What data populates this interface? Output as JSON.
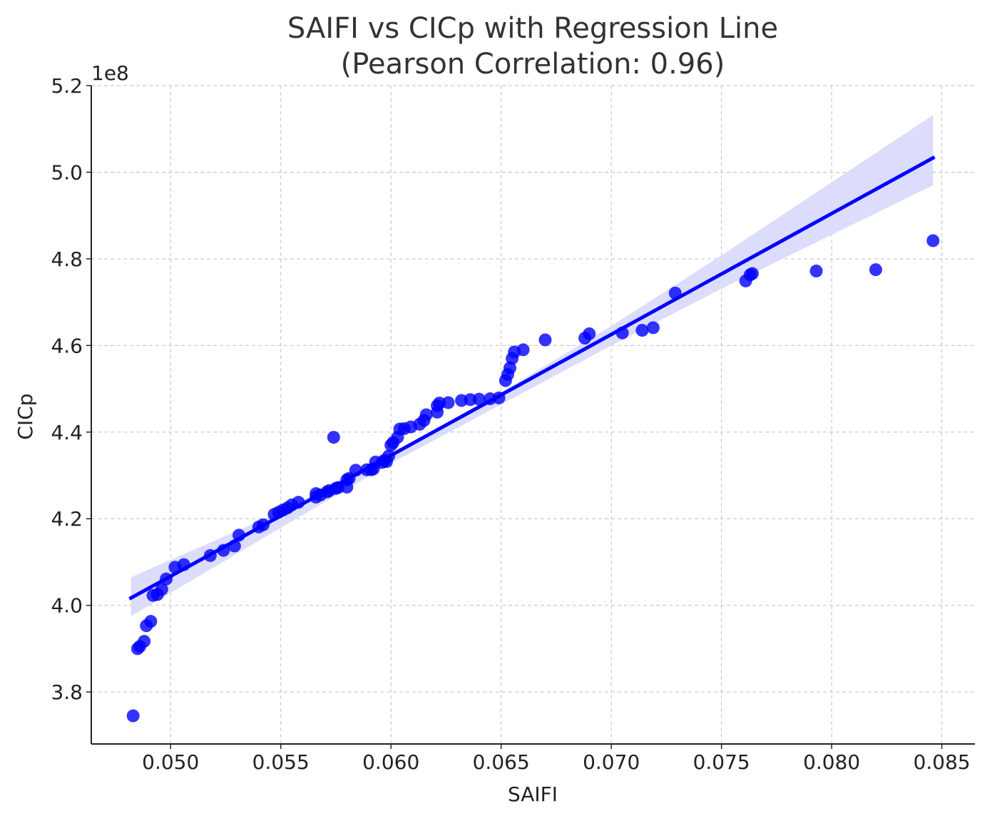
{
  "chart_data": {
    "type": "scatter",
    "title": "SAIFI vs CICp with Regression Line",
    "subtitle": "(Pearson Correlation: 0.96)",
    "xlabel": "SAIFI",
    "ylabel": "CICp",
    "y_offset_label": "1e8",
    "xlim": [
      0.0464,
      0.0865
    ],
    "ylim": [
      3.68,
      5.2
    ],
    "x_ticks": [
      "0.050",
      "0.055",
      "0.060",
      "0.065",
      "0.070",
      "0.075",
      "0.080",
      "0.085"
    ],
    "y_ticks": [
      "3.8",
      "4.0",
      "4.2",
      "4.4",
      "4.6",
      "4.8",
      "5.0",
      "5.2"
    ],
    "grid": true,
    "colors": {
      "points": "#0000ff",
      "line": "#0000ff",
      "band": "#d8d8fc"
    },
    "regression": {
      "x": [
        0.0482,
        0.0846
      ],
      "y": [
        4.017,
        5.033
      ],
      "ci_x": [
        0.0482,
        0.055,
        0.06,
        0.065,
        0.07,
        0.075,
        0.0846
      ],
      "ci_upper": [
        4.065,
        4.216,
        4.351,
        4.492,
        4.645,
        4.808,
        5.132
      ],
      "ci_lower": [
        3.975,
        4.179,
        4.328,
        4.464,
        4.6,
        4.731,
        4.97
      ]
    },
    "points": {
      "x": [
        0.0483,
        0.0485,
        0.0486,
        0.0488,
        0.0489,
        0.0491,
        0.0492,
        0.0494,
        0.0496,
        0.0498,
        0.0502,
        0.0506,
        0.0518,
        0.0524,
        0.0529,
        0.0531,
        0.054,
        0.0542,
        0.0547,
        0.0549,
        0.0551,
        0.0553,
        0.0555,
        0.0558,
        0.0566,
        0.0566,
        0.0568,
        0.0571,
        0.0572,
        0.0574,
        0.0575,
        0.0576,
        0.058,
        0.058,
        0.0581,
        0.0584,
        0.0589,
        0.0591,
        0.0592,
        0.0593,
        0.0596,
        0.0597,
        0.0598,
        0.0599,
        0.06,
        0.0601,
        0.0603,
        0.0604,
        0.0606,
        0.0609,
        0.0613,
        0.0615,
        0.0616,
        0.0621,
        0.0621,
        0.0622,
        0.0626,
        0.0632,
        0.0636,
        0.064,
        0.0645,
        0.0649,
        0.0652,
        0.0653,
        0.0654,
        0.0655,
        0.0656,
        0.066,
        0.067,
        0.0688,
        0.069,
        0.0705,
        0.0714,
        0.0719,
        0.0729,
        0.0761,
        0.0763,
        0.0764,
        0.0793,
        0.082,
        0.0846
      ],
      "y": [
        3.745,
        3.9,
        3.905,
        3.917,
        3.953,
        3.963,
        4.023,
        4.025,
        4.037,
        4.061,
        4.088,
        4.094,
        4.115,
        4.127,
        4.137,
        4.162,
        4.181,
        4.186,
        4.21,
        4.215,
        4.22,
        4.225,
        4.232,
        4.238,
        4.25,
        4.258,
        4.255,
        4.262,
        4.265,
        4.388,
        4.27,
        4.272,
        4.273,
        4.29,
        4.293,
        4.312,
        4.313,
        4.313,
        4.315,
        4.331,
        4.33,
        4.335,
        4.332,
        4.345,
        4.37,
        4.376,
        4.388,
        4.407,
        4.408,
        4.412,
        4.418,
        4.427,
        4.44,
        4.446,
        4.461,
        4.467,
        4.468,
        4.473,
        4.475,
        4.476,
        4.477,
        4.479,
        4.519,
        4.533,
        4.548,
        4.57,
        4.585,
        4.59,
        4.613,
        4.617,
        4.627,
        4.629,
        4.635,
        4.641,
        4.721,
        4.749,
        4.763,
        4.766,
        4.772,
        4.775,
        4.842
      ]
    }
  }
}
